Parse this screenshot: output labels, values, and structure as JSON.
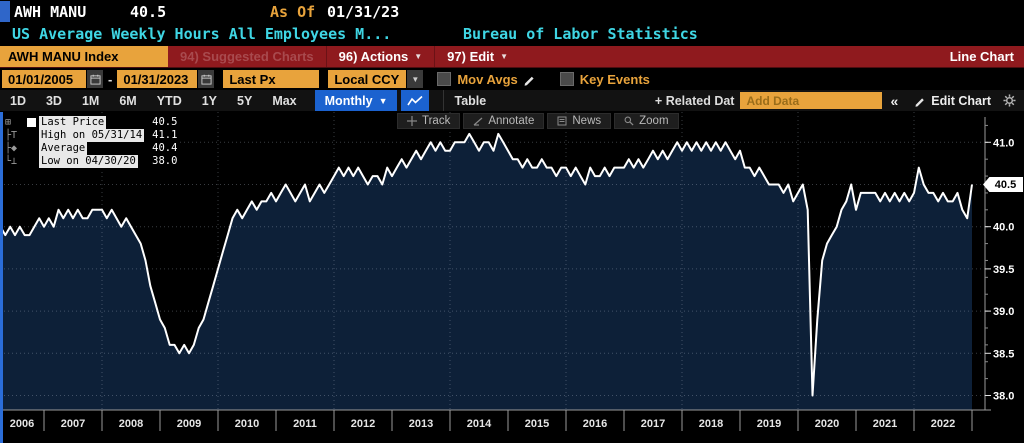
{
  "colors": {
    "amber": "#e8a33c",
    "menu_red": "#8f1a1e",
    "accent_blue": "#1b62cf",
    "cyan": "#3fd6e4",
    "chart_fill": "#0d2038",
    "chart_line": "#ffffff",
    "grid": "rgba(190,200,215,0.30)",
    "axis": "#9a9a9a"
  },
  "window": {
    "ticker": "AWH MANU",
    "last_value": "40.5",
    "as_of_label": "As Of",
    "as_of_date": "01/31/23",
    "description": "US Average Weekly Hours All Employees M...",
    "source": "Bureau of Labor Statistics"
  },
  "menu_bar": {
    "ticker_box": "AWH MANU Index",
    "suggested_charts": "94) Suggested Charts",
    "actions": "96) Actions",
    "edit": "97) Edit",
    "chart_type": "Line Chart"
  },
  "controls": {
    "date_from": "01/01/2005",
    "date_separator": "-",
    "date_to": "01/31/2023",
    "price_field": "Last Px",
    "currency": "Local CCY",
    "mov_avgs_label": "Mov Avgs",
    "key_events_label": "Key Events"
  },
  "period_bar": {
    "periods": [
      "1D",
      "3D",
      "1M",
      "6M",
      "YTD",
      "1Y",
      "5Y",
      "Max"
    ],
    "frequency": "Monthly",
    "table_label": "Table",
    "related_data_label": "+ Related Dat",
    "add_data_placeholder": "Add Data",
    "collapse_glyph": "«",
    "edit_chart_label": "Edit Chart"
  },
  "chart_toolbar": {
    "track": "Track",
    "annotate": "Annotate",
    "news": "News",
    "zoom": "Zoom"
  },
  "legend": {
    "rows": [
      {
        "label": "Last Price",
        "value": "40.5",
        "marker": "series-square"
      },
      {
        "label": "High on 05/31/14",
        "value": "41.1",
        "marker": "high"
      },
      {
        "label": "Average",
        "value": "40.4",
        "marker": "average"
      },
      {
        "label": "Low on 04/30/20",
        "value": "38.0",
        "marker": "low"
      }
    ]
  },
  "y_axis_tag": "40.5",
  "icons": {
    "calendar-icon": "calendar grid",
    "pencil-icon": "edit pencil",
    "gear-icon": "settings gear",
    "magnifier-icon": "zoom magnifier",
    "track-icon": "crosshair",
    "annotate-icon": "angle pen",
    "news-icon": "news page",
    "line-chart-icon": "zigzag line",
    "chevron-down-icon": "▼",
    "collapse-icon": "«"
  },
  "chart_data": {
    "type": "line",
    "title": "AWH MANU Index - US Average Weekly Hours All Employees Manufacturing",
    "frequency": "monthly",
    "axis_range_start": "2005-01",
    "axis_range_end": "2023-02",
    "x_start": "2006-04",
    "x_end": "2023-01",
    "ylim_labels": [
      38.0,
      41.0
    ],
    "y_ticks": [
      38.0,
      38.5,
      39.0,
      39.5,
      40.0,
      40.5,
      41.0
    ],
    "x_tick_labels": [
      "2006",
      "2007",
      "2008",
      "2009",
      "2010",
      "2011",
      "2012",
      "2013",
      "2014",
      "2015",
      "2016",
      "2017",
      "2018",
      "2019",
      "2020",
      "2021",
      "2022"
    ],
    "v_grid_years": [
      2008,
      2010,
      2012,
      2014,
      2016,
      2018,
      2020,
      2022
    ],
    "stats": {
      "last_price": 40.5,
      "high": {
        "date": "05/31/14",
        "value": 41.1
      },
      "average": 40.4,
      "low": {
        "date": "04/30/20",
        "value": 38.0
      }
    },
    "values": [
      40.0,
      39.9,
      40.0,
      39.9,
      40.0,
      39.9,
      39.9,
      40.0,
      40.1,
      40.0,
      40.1,
      40.0,
      40.2,
      40.1,
      40.2,
      40.1,
      40.2,
      40.1,
      40.1,
      40.2,
      40.2,
      40.2,
      40.1,
      40.2,
      40.1,
      40.0,
      40.1,
      40.0,
      39.9,
      39.8,
      39.6,
      39.3,
      39.1,
      38.9,
      38.8,
      38.6,
      38.6,
      38.5,
      38.6,
      38.5,
      38.6,
      38.8,
      38.9,
      39.1,
      39.3,
      39.5,
      39.7,
      39.9,
      40.1,
      40.2,
      40.1,
      40.2,
      40.3,
      40.2,
      40.3,
      40.3,
      40.4,
      40.3,
      40.4,
      40.5,
      40.4,
      40.3,
      40.4,
      40.5,
      40.3,
      40.4,
      40.5,
      40.4,
      40.5,
      40.6,
      40.7,
      40.6,
      40.7,
      40.6,
      40.7,
      40.6,
      40.5,
      40.6,
      40.6,
      40.5,
      40.7,
      40.6,
      40.7,
      40.8,
      40.7,
      40.8,
      40.9,
      40.8,
      40.9,
      41.0,
      40.9,
      41.0,
      40.9,
      40.9,
      41.0,
      41.0,
      41.0,
      41.1,
      41.0,
      40.9,
      41.0,
      41.0,
      40.9,
      41.1,
      41.0,
      40.9,
      40.8,
      40.8,
      40.7,
      40.8,
      40.7,
      40.7,
      40.8,
      40.7,
      40.7,
      40.6,
      40.7,
      40.7,
      40.6,
      40.7,
      40.6,
      40.5,
      40.7,
      40.6,
      40.6,
      40.7,
      40.6,
      40.7,
      40.7,
      40.7,
      40.8,
      40.7,
      40.8,
      40.7,
      40.8,
      40.9,
      40.8,
      40.9,
      40.8,
      40.9,
      41.0,
      40.9,
      41.0,
      40.9,
      41.0,
      40.9,
      41.0,
      40.9,
      41.0,
      40.9,
      41.0,
      40.9,
      40.8,
      40.9,
      40.7,
      40.7,
      40.6,
      40.7,
      40.6,
      40.5,
      40.5,
      40.5,
      40.4,
      40.5,
      40.3,
      40.4,
      40.5,
      40.2,
      38.0,
      38.9,
      39.6,
      39.8,
      39.9,
      40.0,
      40.2,
      40.3,
      40.5,
      40.2,
      40.4,
      40.4,
      40.4,
      40.4,
      40.3,
      40.4,
      40.3,
      40.4,
      40.3,
      40.4,
      40.3,
      40.4,
      40.7,
      40.5,
      40.4,
      40.4,
      40.3,
      40.4,
      40.3,
      40.3,
      40.4,
      40.2,
      40.1,
      40.5
    ]
  }
}
